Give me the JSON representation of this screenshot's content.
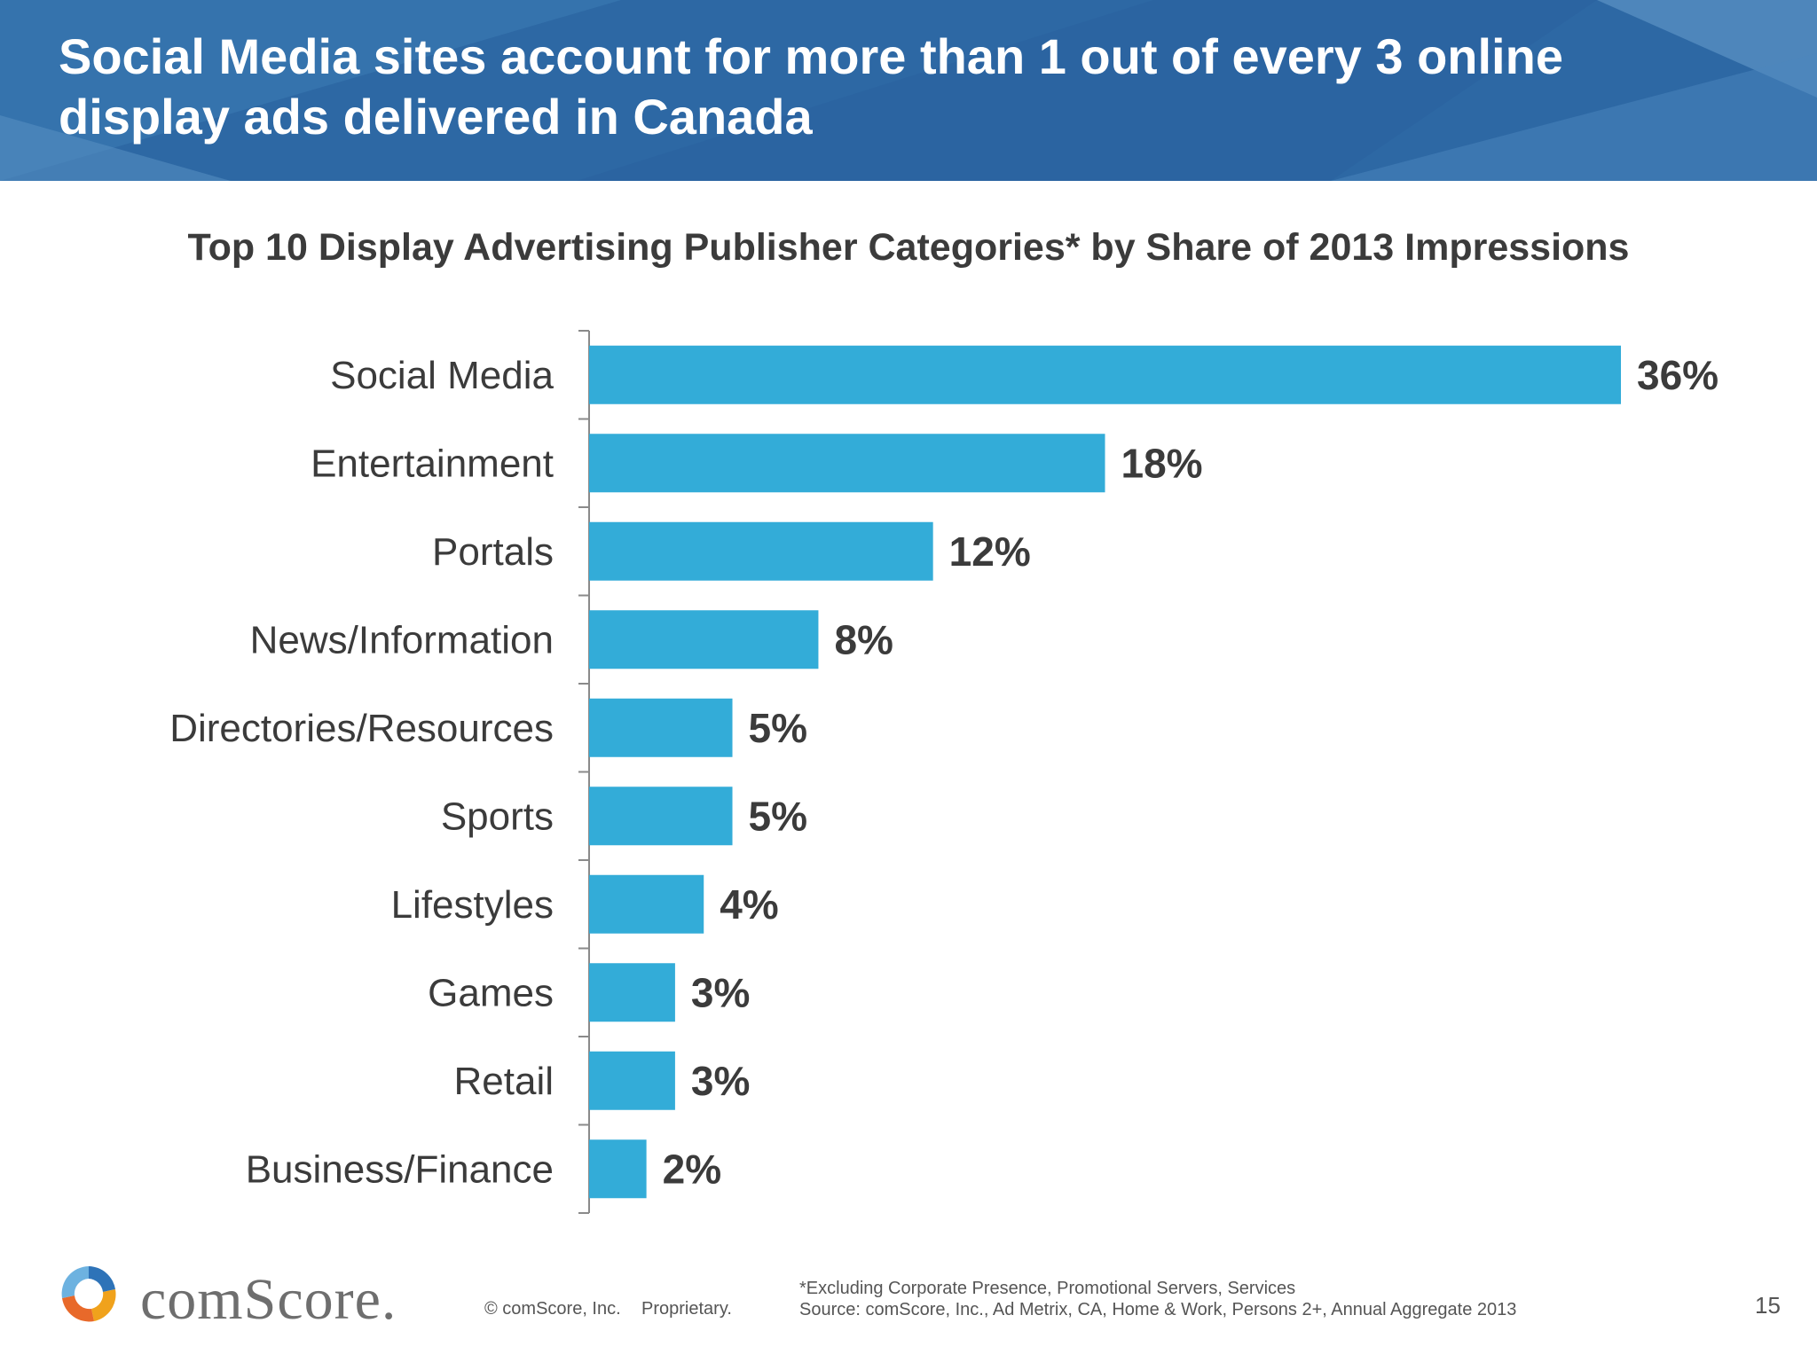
{
  "header": {
    "title": "Social Media sites account for more than 1 out of every 3 online display ads delivered in Canada",
    "background_color": "#2d68a4"
  },
  "chart_data": {
    "type": "bar",
    "orientation": "horizontal",
    "title": "Top 10 Display Advertising Publisher Categories* by Share of 2013 Impressions",
    "categories": [
      "Social Media",
      "Entertainment",
      "Portals",
      "News/Information",
      "Directories/Resources",
      "Sports",
      "Lifestyles",
      "Games",
      "Retail",
      "Business/Finance"
    ],
    "values": [
      36,
      18,
      12,
      8,
      5,
      5,
      4,
      3,
      3,
      2
    ],
    "value_labels": [
      "36%",
      "18%",
      "12%",
      "8%",
      "5%",
      "5%",
      "4%",
      "3%",
      "3%",
      "2%"
    ],
    "unit": "%",
    "bar_color": "#33acd8",
    "xlim": [
      0,
      36
    ],
    "grid": false,
    "legend": "none"
  },
  "footer": {
    "brand": "comScore.",
    "copyright": "© comScore, Inc.",
    "proprietary": "Proprietary.",
    "note": "*Excluding Corporate Presence, Promotional Servers, Services",
    "source": "Source: comScore, Inc., Ad Metrix, CA, Home & Work, Persons 2+, Annual Aggregate 2013",
    "page_number": "15"
  }
}
